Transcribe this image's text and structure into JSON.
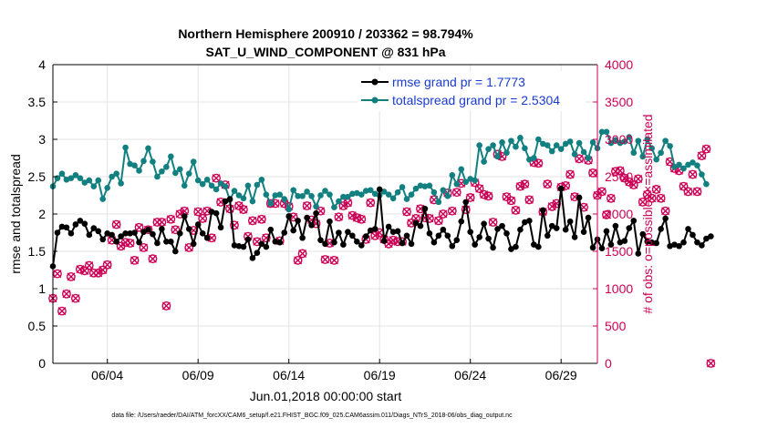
{
  "chart_data": {
    "type": "line",
    "title": "Northern Hemisphere 200910 / 203362 = 98.794%",
    "subtitle": "SAT_U_WIND_COMPONENT @ 831 hPa",
    "xlabel": "Jun.01,2018 00:00:00 start",
    "ylabel_left": "rmse and totalspread",
    "ylabel_right": "# of obs: o=possible; ×=assimilated",
    "xlim": [
      1,
      31
    ],
    "ylim_left": [
      0,
      4
    ],
    "ylim_right": [
      0,
      4000
    ],
    "x_ticks": [
      {
        "x": 4,
        "label": "06/04"
      },
      {
        "x": 9,
        "label": "06/09"
      },
      {
        "x": 14,
        "label": "06/14"
      },
      {
        "x": 19,
        "label": "06/19"
      },
      {
        "x": 24,
        "label": "06/24"
      },
      {
        "x": 29,
        "label": "06/29"
      }
    ],
    "y_ticks_left": [
      "0",
      "0.5",
      "1",
      "1.5",
      "2",
      "2.5",
      "3",
      "3.5",
      "4"
    ],
    "y_ticks_right": [
      "0",
      "500",
      "1000",
      "1500",
      "2000",
      "2500",
      "3000",
      "3500",
      "4000"
    ],
    "grid": true,
    "legend_position": "top-right",
    "colors": {
      "rmse": "#000000",
      "spread": "#128080",
      "obs": "#cc0055"
    },
    "series": [
      {
        "name": "rmse grand pr = 1.7773",
        "axis": "left",
        "x_start": 1,
        "x_step": 0.25,
        "values": [
          1.3,
          1.75,
          1.83,
          1.82,
          1.74,
          1.86,
          1.91,
          1.87,
          1.72,
          1.81,
          1.77,
          1.66,
          1.74,
          1.72,
          1.63,
          1.7,
          1.74,
          1.74,
          1.75,
          1.62,
          1.76,
          1.79,
          1.73,
          1.61,
          1.8,
          1.63,
          1.63,
          1.5,
          1.74,
          1.97,
          1.8,
          1.6,
          1.86,
          1.74,
          1.68,
          2.03,
          2.01,
          1.82,
          2.17,
          2.2,
          1.58,
          1.57,
          1.56,
          1.66,
          1.41,
          1.48,
          1.6,
          1.56,
          1.79,
          1.63,
          1.62,
          1.75,
          1.97,
          1.78,
          1.91,
          1.68,
          1.95,
          1.85,
          2.01,
          1.65,
          1.6,
          1.9,
          1.62,
          1.75,
          1.59,
          1.76,
          1.71,
          1.63,
          1.58,
          1.7,
          1.78,
          1.8,
          2.33,
          1.64,
          1.83,
          1.76,
          1.77,
          1.61,
          1.71,
          1.6,
          1.88,
          1.84,
          2.07,
          1.74,
          1.62,
          1.71,
          1.79,
          1.71,
          1.57,
          1.65,
          1.9,
          2.16,
          1.76,
          1.59,
          1.69,
          1.87,
          1.67,
          1.55,
          1.8,
          1.84,
          1.74,
          1.53,
          1.56,
          1.79,
          1.89,
          1.91,
          1.59,
          1.56,
          2.05,
          1.71,
          1.84,
          1.81,
          2.34,
          1.79,
          1.9,
          1.69,
          2.22,
          1.76,
          1.95,
          1.55,
          1.66,
          1.54,
          1.77,
          1.59,
          1.84,
          1.62,
          1.64,
          1.81,
          1.91,
          1.47,
          1.73,
          1.63,
          1.62,
          1.61,
          1.8,
          1.94,
          1.57,
          1.59,
          1.57,
          1.62,
          1.8,
          1.72,
          1.62,
          1.58,
          1.67,
          1.7
        ]
      },
      {
        "name": "totalspread grand pr = 2.5304",
        "axis": "left",
        "x_start": 1,
        "x_step": 0.25,
        "values": [
          2.37,
          2.48,
          2.54,
          2.46,
          2.48,
          2.52,
          2.48,
          2.42,
          2.45,
          2.37,
          2.45,
          2.2,
          2.35,
          2.5,
          2.54,
          2.41,
          2.89,
          2.67,
          2.65,
          2.58,
          2.71,
          2.88,
          2.7,
          2.5,
          2.57,
          2.63,
          2.77,
          2.55,
          2.6,
          2.38,
          2.54,
          2.7,
          2.45,
          2.4,
          2.46,
          2.38,
          2.33,
          2.41,
          2.37,
          2.19,
          2.31,
          2.25,
          2.21,
          2.38,
          2.17,
          2.39,
          2.46,
          2.26,
          2.14,
          2.25,
          2.26,
          2.2,
          2.06,
          2.32,
          2.24,
          2.24,
          2.3,
          2.24,
          2.1,
          2.25,
          2.31,
          2.26,
          2.09,
          2.17,
          2.23,
          2.23,
          2.27,
          2.28,
          2.26,
          2.31,
          2.32,
          2.27,
          2.25,
          2.3,
          2.26,
          2.21,
          2.29,
          2.36,
          2.2,
          2.26,
          2.34,
          2.38,
          2.37,
          2.38,
          2.29,
          2.16,
          2.32,
          2.24,
          2.52,
          2.4,
          2.6,
          2.43,
          2.47,
          2.45,
          2.92,
          2.7,
          2.87,
          2.92,
          2.77,
          2.96,
          2.82,
          2.98,
          2.9,
          3.02,
          2.88,
          2.73,
          2.75,
          3.0,
          2.94,
          2.92,
          2.84,
          2.92,
          2.87,
          2.94,
          2.97,
          2.8,
          2.95,
          2.83,
          2.75,
          2.96,
          2.88,
          3.1,
          3.1,
          2.95,
          2.99,
          2.95,
          2.97,
          3.03,
          2.82,
          2.98,
          2.77,
          3.0,
          2.88,
          2.73,
          2.82,
          2.98,
          2.91,
          2.63,
          2.66,
          2.61,
          2.66,
          2.69,
          2.65,
          2.53,
          2.4
        ]
      },
      {
        "name": "obs possible",
        "axis": "right",
        "marker": "o",
        "x_start": 1,
        "x_step": 0.25,
        "values": [
          870,
          1200,
          700,
          930,
          1160,
          870,
          1260,
          1240,
          1310,
          1210,
          1210,
          1250,
          1320,
          1650,
          1860,
          1570,
          1620,
          1610,
          1380,
          1820,
          1550,
          1790,
          1400,
          1890,
          1890,
          770,
          1930,
          1790,
          2000,
          2040,
          1550,
          1780,
          2030,
          1940,
          2040,
          1680,
          2480,
          2160,
          2390,
          2070,
          1850,
          2110,
          2060,
          1700,
          1910,
          1630,
          1930,
          1680,
          2140,
          2140,
          1640,
          2140,
          2100,
          1960,
          1380,
          1470,
          2110,
          1920,
          1870,
          2040,
          1390,
          1610,
          1380,
          1960,
          2110,
          2150,
          1980,
          1950,
          1930,
          1660,
          2150,
          1710,
          1750,
          1660,
          1600,
          1650,
          1630,
          1630,
          2030,
          1880,
          1940,
          2070,
          1950,
          1940,
          2190,
          1910,
          2000,
          2280,
          2040,
          2290,
          2410,
          2060,
          2220,
          2420,
          2340,
          2260,
          2240,
          1890,
          2800,
          2770,
          2230,
          2180,
          2050,
          2370,
          2400,
          2190,
          2690,
          2680,
          2030,
          2400,
          2100,
          2140,
          2360,
          2380,
          2530,
          2230,
          2740,
          2090,
          2720,
          2550,
          2250,
          2300,
          1990,
          2210,
          2570,
          2580,
          2480,
          2430,
          2390,
          2470,
          2160,
          2260,
          2210,
          2330,
          2210,
          2040,
          2700,
          2610,
          2580,
          2370,
          2300,
          2530,
          2300,
          2780,
          2870,
          0
        ]
      },
      {
        "name": "obs assimilated",
        "axis": "right",
        "marker": "x",
        "x_start": 1,
        "x_step": 0.25,
        "values": [
          870,
          1200,
          700,
          930,
          1160,
          870,
          1260,
          1240,
          1310,
          1210,
          1210,
          1250,
          1320,
          1650,
          1860,
          1570,
          1620,
          1610,
          1380,
          1820,
          1550,
          1790,
          1400,
          1890,
          1890,
          770,
          1930,
          1790,
          2000,
          2040,
          1550,
          1780,
          2030,
          1940,
          2040,
          1680,
          2480,
          2160,
          2390,
          2070,
          1850,
          2110,
          2060,
          1700,
          1910,
          1630,
          1930,
          1680,
          2140,
          2140,
          1640,
          2140,
          2100,
          1960,
          1380,
          1470,
          2110,
          1920,
          1870,
          2040,
          1390,
          1610,
          1380,
          1960,
          2110,
          2150,
          1980,
          1950,
          1930,
          1660,
          2150,
          1710,
          1750,
          1660,
          1600,
          1650,
          1630,
          1630,
          2030,
          1880,
          1940,
          2070,
          1950,
          1940,
          2190,
          1910,
          2000,
          2280,
          2040,
          2290,
          2410,
          2060,
          2220,
          2420,
          2340,
          2260,
          2240,
          1890,
          2800,
          2770,
          2230,
          2180,
          2050,
          2370,
          2400,
          2190,
          2690,
          2680,
          2030,
          2400,
          2100,
          2140,
          2360,
          2380,
          2530,
          2230,
          2740,
          2090,
          2720,
          2550,
          2250,
          2300,
          1990,
          2210,
          2570,
          2580,
          2480,
          2430,
          2390,
          2470,
          2160,
          2260,
          2210,
          2330,
          2210,
          2040,
          2700,
          2610,
          2580,
          2370,
          2300,
          2530,
          2300,
          2780,
          2870,
          0
        ]
      }
    ],
    "annotation": "data file: /Users/raeder/DAI/ATM_forcXX/CAM6_setup/f.e21.FHIST_BGC.f09_025.CAM6assim.011/Diags_NTrS_2018-06/obs_diag_output.nc"
  }
}
